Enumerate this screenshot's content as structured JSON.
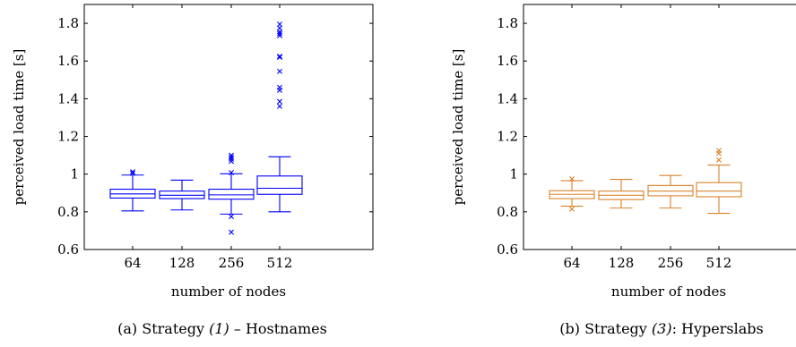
{
  "chart_data": [
    {
      "type": "box",
      "xlabel": "number of nodes",
      "ylabel": "perceived load time [s]",
      "ylim": [
        0.6,
        1.9
      ],
      "yticks": [
        0.6,
        0.8,
        1,
        1.2,
        1.4,
        1.6,
        1.8
      ],
      "ytick_labels": [
        "0.6",
        "0.8",
        "1",
        "1.2",
        "1.4",
        "1.6",
        "1.8"
      ],
      "categories": [
        "64",
        "128",
        "256",
        "512"
      ],
      "color": "#0000ff",
      "caption": {
        "prefix": "(a) Strategy ",
        "italic": "(1)",
        "suffix": " – Hostnames"
      },
      "boxes": [
        {
          "min": 0.805,
          "q1": 0.873,
          "median": 0.895,
          "q3": 0.92,
          "max": 0.995,
          "outliers": [
            1.005,
            1.012
          ]
        },
        {
          "min": 0.81,
          "q1": 0.87,
          "median": 0.888,
          "q3": 0.91,
          "max": 0.968,
          "outliers": []
        },
        {
          "min": 0.788,
          "q1": 0.867,
          "median": 0.89,
          "q3": 0.92,
          "max": 1.002,
          "outliers": [
            1.008,
            1.068,
            1.08,
            1.09,
            1.1,
            0.775,
            0.692
          ]
        },
        {
          "min": 0.8,
          "q1": 0.893,
          "median": 0.925,
          "q3": 0.99,
          "max": 1.092,
          "outliers": [
            1.36,
            1.385,
            1.445,
            1.46,
            1.545,
            1.62,
            1.625,
            1.735,
            1.745,
            1.755,
            1.775,
            1.795
          ]
        }
      ]
    },
    {
      "type": "box",
      "xlabel": "number of nodes",
      "ylabel": "perceived load time [s]",
      "ylim": [
        0.6,
        1.9
      ],
      "yticks": [
        0.6,
        0.8,
        1,
        1.2,
        1.4,
        1.6,
        1.8
      ],
      "ytick_labels": [
        "0.6",
        "0.8",
        "1",
        "1.2",
        "1.4",
        "1.6",
        "1.8"
      ],
      "categories": [
        "64",
        "128",
        "256",
        "512"
      ],
      "color": "#d9822b",
      "caption": {
        "prefix": "(b) Strategy ",
        "italic": "(3)",
        "suffix": ": Hyperslabs"
      },
      "boxes": [
        {
          "min": 0.83,
          "q1": 0.87,
          "median": 0.893,
          "q3": 0.912,
          "max": 0.965,
          "outliers": [
            0.975,
            0.815
          ]
        },
        {
          "min": 0.82,
          "q1": 0.865,
          "median": 0.888,
          "q3": 0.91,
          "max": 0.972,
          "outliers": []
        },
        {
          "min": 0.82,
          "q1": 0.885,
          "median": 0.91,
          "q3": 0.94,
          "max": 0.993,
          "outliers": []
        },
        {
          "min": 0.792,
          "q1": 0.88,
          "median": 0.91,
          "q3": 0.955,
          "max": 1.048,
          "outliers": [
            1.075,
            1.11,
            1.125
          ]
        }
      ]
    }
  ]
}
